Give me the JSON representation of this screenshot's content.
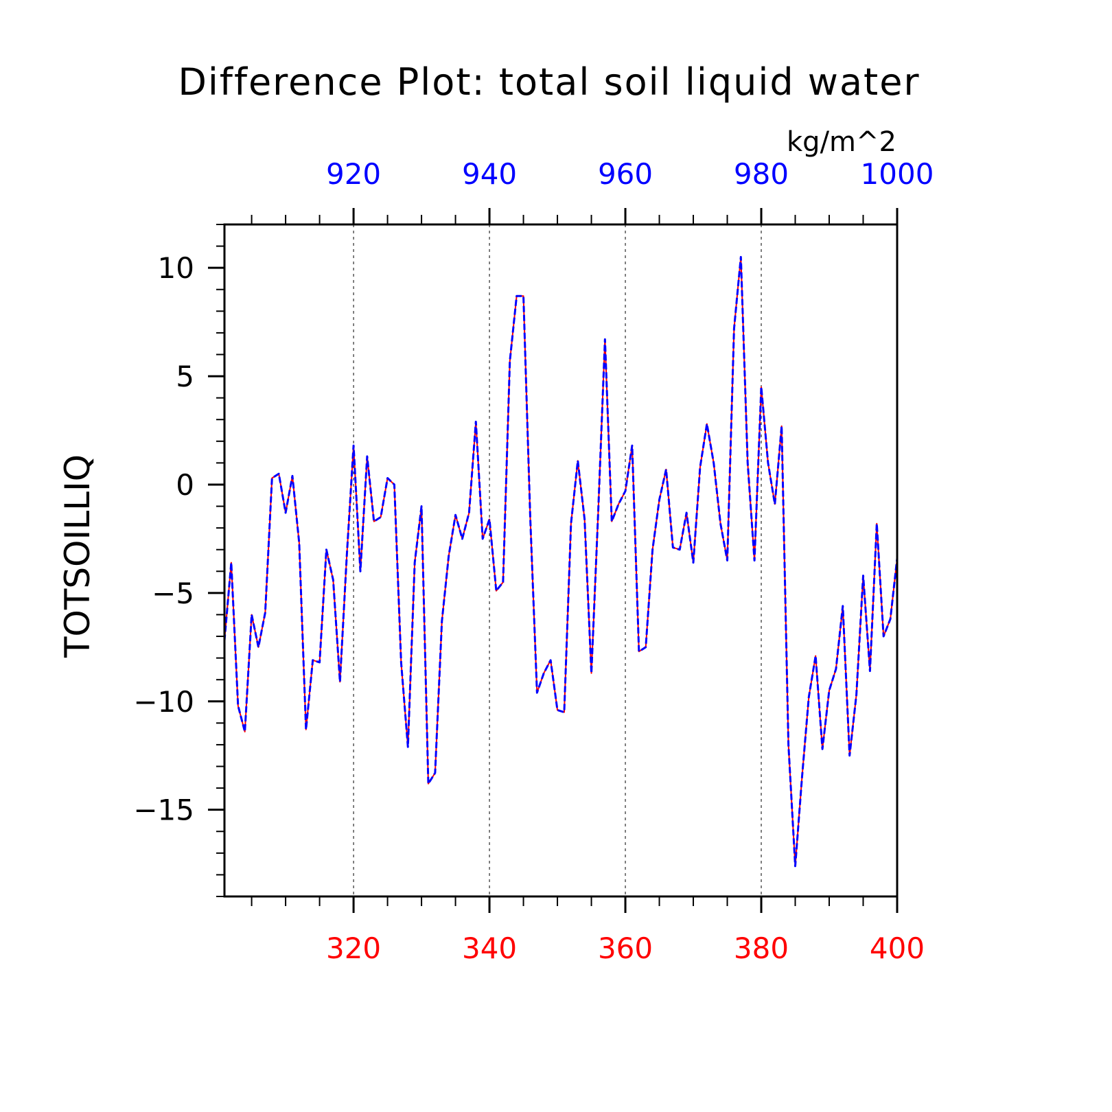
{
  "chart_data": {
    "type": "line",
    "title": "Difference Plot: total soil liquid water",
    "units": "kg/m^2",
    "ylabel": "TOTSOILLIQ",
    "xlim": [
      301,
      400
    ],
    "ylim": [
      -19,
      12
    ],
    "x_ticks": [
      320,
      340,
      360,
      380,
      400
    ],
    "x_top_ticks": [
      920,
      940,
      960,
      980,
      1000
    ],
    "y_ticks": [
      10,
      5,
      0,
      -5,
      -10,
      -15
    ],
    "y_tick_labels": [
      "10",
      "5",
      "0",
      "−5",
      "−10",
      "−15"
    ],
    "grid": "vertical dashed at major x ticks",
    "colors": {
      "bottom_axis": "#ff0000",
      "top_axis": "#0000ff",
      "axes": "#000000"
    },
    "x": [
      301,
      302,
      303,
      304,
      305,
      306,
      307,
      308,
      309,
      310,
      311,
      312,
      313,
      314,
      315,
      316,
      317,
      318,
      319,
      320,
      321,
      322,
      323,
      324,
      325,
      326,
      327,
      328,
      329,
      330,
      331,
      332,
      333,
      334,
      335,
      336,
      337,
      338,
      339,
      340,
      341,
      342,
      343,
      344,
      345,
      346,
      347,
      348,
      349,
      350,
      351,
      352,
      353,
      354,
      355,
      356,
      357,
      358,
      359,
      360,
      361,
      362,
      363,
      364,
      365,
      366,
      367,
      368,
      369,
      370,
      371,
      372,
      373,
      374,
      375,
      376,
      377,
      378,
      379,
      380,
      381,
      382,
      383,
      384,
      385,
      386,
      387,
      388,
      389,
      390,
      391,
      392,
      393,
      394,
      395,
      396,
      397,
      398,
      399,
      400
    ],
    "series": [
      {
        "color": "#ff0000",
        "style": "solid",
        "values": [
          -7.2,
          -3.6,
          -10.2,
          -11.4,
          -6.0,
          -7.5,
          -5.9,
          0.3,
          0.5,
          -1.3,
          0.4,
          -2.7,
          -11.3,
          -8.1,
          -8.2,
          -3.0,
          -4.4,
          -9.1,
          -3.3,
          1.8,
          -4.0,
          1.3,
          -1.7,
          -1.5,
          0.3,
          0.0,
          -8.2,
          -12.1,
          -3.6,
          -1.0,
          -13.8,
          -13.3,
          -6.3,
          -3.3,
          -1.4,
          -2.5,
          -1.3,
          2.9,
          -2.5,
          -1.6,
          -4.9,
          -4.5,
          5.7,
          8.7,
          8.7,
          -1.5,
          -9.6,
          -8.7,
          -8.1,
          -10.4,
          -10.5,
          -1.8,
          1.1,
          -1.6,
          -8.7,
          -1.3,
          6.7,
          -1.7,
          -0.9,
          -0.3,
          1.8,
          -7.7,
          -7.5,
          -3.0,
          -0.7,
          0.7,
          -2.9,
          -3.0,
          -1.3,
          -3.6,
          0.8,
          2.8,
          1.0,
          -1.8,
          -3.5,
          7.2,
          10.5,
          1.0,
          -3.5,
          4.5,
          1.0,
          -0.9,
          2.7,
          -12.0,
          -17.6,
          -13.5,
          -9.8,
          -7.9,
          -12.2,
          -9.5,
          -8.5,
          -5.6,
          -12.5,
          -9.7,
          -4.2,
          -8.6,
          -1.8,
          -7.0,
          -6.2,
          -3.4
        ]
      },
      {
        "color": "#0000ff",
        "style": "dashed",
        "values": [
          -7.2,
          -3.6,
          -10.2,
          -11.4,
          -6.0,
          -7.5,
          -5.9,
          0.3,
          0.5,
          -1.3,
          0.4,
          -2.7,
          -11.3,
          -8.1,
          -8.2,
          -3.0,
          -4.4,
          -9.1,
          -3.3,
          1.8,
          -4.0,
          1.3,
          -1.7,
          -1.5,
          0.3,
          0.0,
          -8.2,
          -12.1,
          -3.6,
          -1.0,
          -13.8,
          -13.3,
          -6.3,
          -3.3,
          -1.4,
          -2.5,
          -1.3,
          2.9,
          -2.5,
          -1.6,
          -4.9,
          -4.5,
          5.7,
          8.7,
          8.7,
          -1.5,
          -9.6,
          -8.7,
          -8.1,
          -10.4,
          -10.5,
          -1.8,
          1.1,
          -1.6,
          -8.7,
          -1.3,
          6.7,
          -1.7,
          -0.9,
          -0.3,
          1.8,
          -7.7,
          -7.5,
          -3.0,
          -0.7,
          0.7,
          -2.9,
          -3.0,
          -1.3,
          -3.6,
          0.8,
          2.8,
          1.0,
          -1.8,
          -3.5,
          7.2,
          10.5,
          1.0,
          -3.5,
          4.5,
          1.0,
          -0.9,
          2.7,
          -12.0,
          -17.6,
          -13.5,
          -9.8,
          -7.9,
          -12.2,
          -9.5,
          -8.5,
          -5.6,
          -12.5,
          -9.7,
          -4.2,
          -8.6,
          -1.8,
          -7.0,
          -6.2,
          -3.4
        ]
      }
    ]
  }
}
